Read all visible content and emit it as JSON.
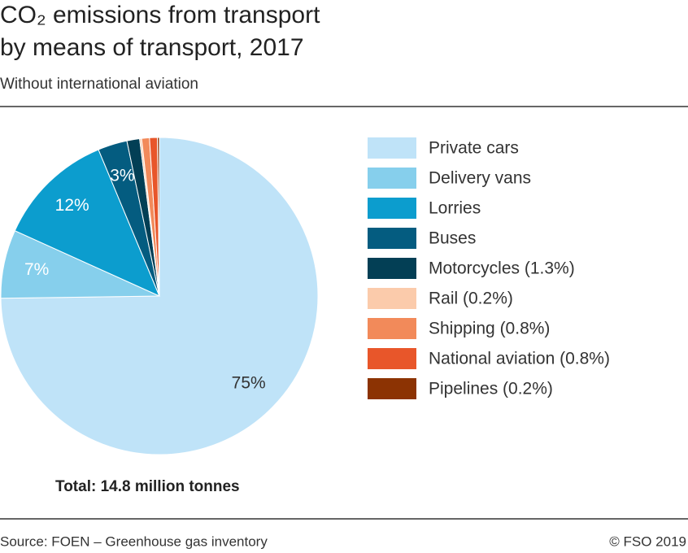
{
  "chart_data": {
    "type": "pie",
    "title": [
      "CO₂ emissions from transport",
      "by means of transport, 2017"
    ],
    "subtitle": "Without international aviation",
    "annotation": "Total: 14.8 million tonnes",
    "source": "Source: FOEN – Greenhouse gas inventory",
    "credit": "© FSO 2019",
    "categories": [
      "Private cars",
      "Delivery vans",
      "Lorries",
      "Buses",
      "Motorcycles (1.3%)",
      "Rail (0.2%)",
      "Shipping (0.8%)",
      "National aviation (0.8%)",
      "Pipelines (0.2%)"
    ],
    "values": [
      75,
      7,
      12,
      3,
      1.3,
      0.2,
      0.8,
      0.8,
      0.2
    ],
    "value_labels": [
      "75%",
      "7%",
      "12%",
      "3%",
      null,
      null,
      null,
      null,
      null
    ],
    "colors": [
      "#bfe3f8",
      "#86cfec",
      "#0c9dce",
      "#045c80",
      "#033f55",
      "#fbcbab",
      "#f28a5a",
      "#e8562a",
      "#8c3303"
    ],
    "legend": "right"
  }
}
